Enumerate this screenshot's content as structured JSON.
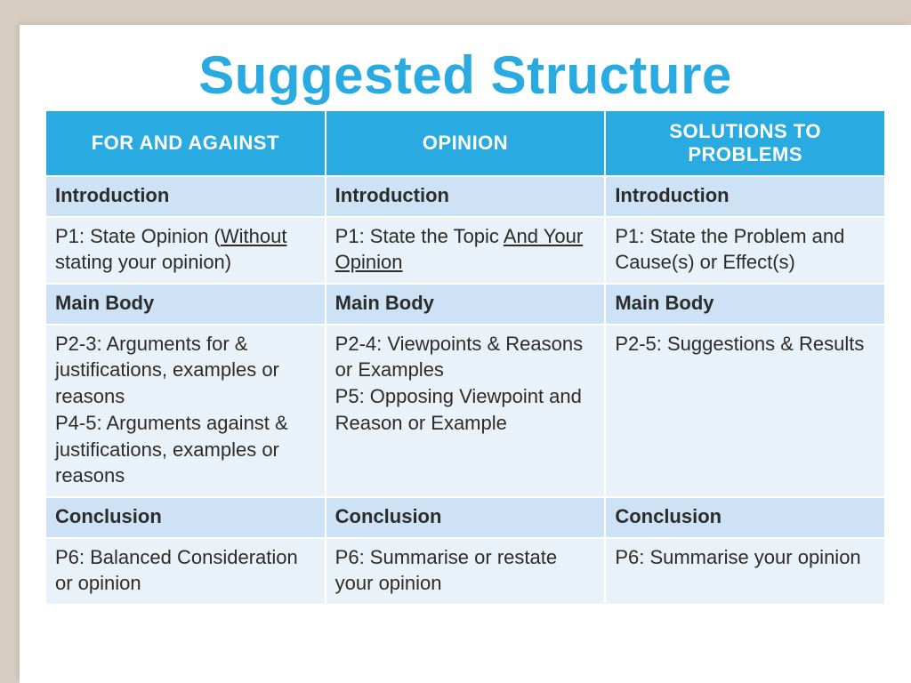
{
  "title": "Suggested Structure",
  "colors": {
    "page_bg": "#d6ccbf",
    "slide_bg": "#ffffff",
    "accent": "#29abe2",
    "header_text": "#ffffff",
    "section_row_bg": "#cde3f5",
    "content_row_bg": "#eaf2f9",
    "body_text": "#2c2c2c",
    "cell_border": "#ffffff"
  },
  "typography": {
    "title_fontsize": 60,
    "title_weight": 700,
    "header_fontsize": 22,
    "cell_fontsize": 22,
    "font_family": "Century Gothic"
  },
  "table": {
    "type": "table",
    "columns": [
      "FOR AND AGAINST",
      "OPINION",
      "SOLUTIONS TO PROBLEMS"
    ],
    "rows": [
      {
        "kind": "section",
        "cells": [
          "Introduction",
          "Introduction",
          "Introduction"
        ]
      },
      {
        "kind": "content",
        "cells_html": [
          "P1: State Opinion (<span class=\"u\">Without</span> stating your opinion)",
          "P1: State the Topic <span class=\"u\">And Your Opinion</span>",
          "P1: State the Problem and Cause(s) or Effect(s)"
        ],
        "cells": [
          "P1: State Opinion (Without stating your opinion)",
          "P1: State the Topic And Your Opinion",
          "P1: State the Problem and Cause(s) or Effect(s)"
        ]
      },
      {
        "kind": "section",
        "cells": [
          "Main Body",
          "Main Body",
          "Main Body"
        ]
      },
      {
        "kind": "content",
        "cells": [
          "P2-3: Arguments for & justifications, examples or reasons\nP4-5: Arguments against & justifications, examples or reasons",
          "P2-4: Viewpoints & Reasons or Examples\nP5: Opposing Viewpoint and Reason or Example",
          "P2-5: Suggestions & Results"
        ]
      },
      {
        "kind": "section",
        "cells": [
          "Conclusion",
          "Conclusion",
          "Conclusion"
        ]
      },
      {
        "kind": "content",
        "cells": [
          "P6: Balanced Consideration or opinion",
          "P6: Summarise or restate your opinion",
          "P6: Summarise your opinion"
        ]
      }
    ]
  }
}
